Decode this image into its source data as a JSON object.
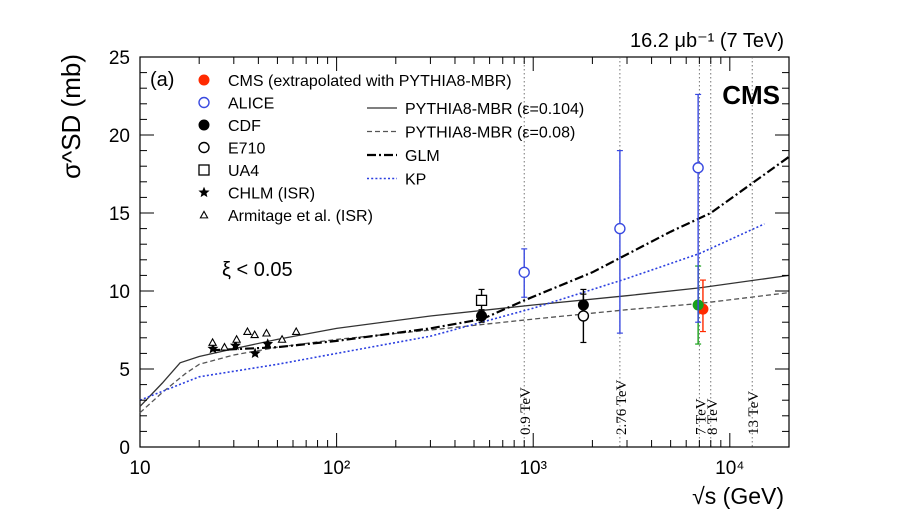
{
  "chart_data": {
    "type": "scatter",
    "panel_label": "(a)",
    "header_text": "16.2 μb⁻¹ (7 TeV)",
    "experiment_label": "CMS",
    "cut_label": "ξ < 0.05",
    "ylabel": "σ^SD (mb)",
    "xlabel": "√s (GeV)",
    "xscale": "log",
    "xlim": [
      10,
      20000
    ],
    "ylim": [
      0,
      25
    ],
    "x_ticks": [
      {
        "value": 10,
        "label": "10"
      },
      {
        "value": 100,
        "label": "10²"
      },
      {
        "value": 1000,
        "label": "10³"
      },
      {
        "value": 10000,
        "label": "10⁴"
      }
    ],
    "y_ticks": [
      {
        "value": 0,
        "label": "0"
      },
      {
        "value": 5,
        "label": "5"
      },
      {
        "value": 10,
        "label": "10"
      },
      {
        "value": 15,
        "label": "15"
      },
      {
        "value": 20,
        "label": "20"
      },
      {
        "value": 25,
        "label": "25"
      }
    ],
    "energy_markers": [
      {
        "x": 900,
        "label": "0.9 TeV"
      },
      {
        "x": 2760,
        "label": "2.76 TeV"
      },
      {
        "x": 7000,
        "label": "7 TeV"
      },
      {
        "x": 8000,
        "label": "8 TeV"
      },
      {
        "x": 13000,
        "label": "13 TeV"
      }
    ],
    "series": [
      {
        "name": "CMS (extrapolated with PYTHIA8-MBR)",
        "marker": "filled-circle",
        "color": "#ff2a00",
        "points": [
          {
            "x": 7300,
            "y": 8.84,
            "ylo": 7.4,
            "yhi": 10.7
          }
        ]
      },
      {
        "name": "CMS (green)",
        "marker": "filled-circle",
        "color": "#18a018",
        "legend": false,
        "points": [
          {
            "x": 6900,
            "y": 9.1,
            "ylo": 6.6,
            "yhi": 11.6
          }
        ]
      },
      {
        "name": "ALICE",
        "marker": "open-circle",
        "color": "#3a4ae0",
        "points": [
          {
            "x": 900,
            "y": 11.2,
            "ylo": 9.6,
            "yhi": 12.7
          },
          {
            "x": 2760,
            "y": 14.0,
            "ylo": 7.3,
            "yhi": 19.0
          },
          {
            "x": 6900,
            "y": 17.9,
            "ylo": 8.0,
            "yhi": 22.6
          }
        ]
      },
      {
        "name": "CDF",
        "marker": "filled-circle",
        "color": "#000000",
        "points": [
          {
            "x": 546,
            "y": 8.4,
            "ylo": 8.0,
            "yhi": 8.8
          },
          {
            "x": 1800,
            "y": 9.1,
            "ylo": 8.5,
            "yhi": 9.8
          }
        ]
      },
      {
        "name": "E710",
        "marker": "open-circle",
        "color": "#000000",
        "points": [
          {
            "x": 1800,
            "y": 8.4,
            "ylo": 6.7,
            "yhi": 10.1
          }
        ]
      },
      {
        "name": "UA4",
        "marker": "open-square",
        "color": "#000000",
        "points": [
          {
            "x": 546,
            "y": 9.4,
            "ylo": 8.7,
            "yhi": 10.1
          }
        ]
      },
      {
        "name": "CHLM (ISR)",
        "marker": "star",
        "color": "#000000",
        "points": [
          {
            "x": 23.5,
            "y": 6.3
          },
          {
            "x": 30.6,
            "y": 6.5
          },
          {
            "x": 38.5,
            "y": 6.0
          },
          {
            "x": 44.6,
            "y": 6.6
          }
        ]
      },
      {
        "name": "Armitage et al. (ISR)",
        "marker": "open-triangle",
        "color": "#000000",
        "points": [
          {
            "x": 23.4,
            "y": 6.7
          },
          {
            "x": 26.9,
            "y": 6.4
          },
          {
            "x": 31.0,
            "y": 6.9
          },
          {
            "x": 35.2,
            "y": 7.4
          },
          {
            "x": 38.3,
            "y": 7.2
          },
          {
            "x": 44.0,
            "y": 7.3
          },
          {
            "x": 52.8,
            "y": 6.9
          },
          {
            "x": 62.3,
            "y": 7.4
          }
        ]
      }
    ],
    "curves": [
      {
        "name": "PYTHIA8-MBR (ε=0.104)",
        "style": "solid",
        "color": "#333333",
        "points": [
          [
            10,
            2.6
          ],
          [
            13,
            4.1
          ],
          [
            16,
            5.4
          ],
          [
            20,
            5.8
          ],
          [
            30,
            6.3
          ],
          [
            50,
            6.9
          ],
          [
            100,
            7.6
          ],
          [
            300,
            8.4
          ],
          [
            1000,
            9.1
          ],
          [
            3000,
            9.7
          ],
          [
            7000,
            10.2
          ],
          [
            20000,
            11.0
          ]
        ]
      },
      {
        "name": "PYTHIA8-MBR (ε=0.08)",
        "style": "dashed",
        "color": "#555555",
        "points": [
          [
            10,
            2.2
          ],
          [
            13,
            3.5
          ],
          [
            17,
            4.7
          ],
          [
            20,
            5.3
          ],
          [
            30,
            5.9
          ],
          [
            50,
            6.4
          ],
          [
            100,
            6.9
          ],
          [
            300,
            7.5
          ],
          [
            1000,
            8.2
          ],
          [
            3000,
            8.8
          ],
          [
            7000,
            9.2
          ],
          [
            20000,
            9.9
          ]
        ]
      },
      {
        "name": "GLM",
        "style": "dashdot",
        "color": "#000000",
        "points": [
          [
            23,
            6.2
          ],
          [
            50,
            6.4
          ],
          [
            100,
            6.8
          ],
          [
            300,
            7.6
          ],
          [
            550,
            8.2
          ],
          [
            900,
            9.4
          ],
          [
            2000,
            11.2
          ],
          [
            5000,
            13.8
          ],
          [
            8000,
            15.0
          ],
          [
            20000,
            18.6
          ]
        ]
      },
      {
        "name": "KP",
        "style": "dotted",
        "color": "#2b3fe0",
        "points": [
          [
            10,
            3.0
          ],
          [
            20,
            4.5
          ],
          [
            50,
            5.3
          ],
          [
            100,
            6.0
          ],
          [
            300,
            7.1
          ],
          [
            1000,
            8.9
          ],
          [
            3000,
            10.8
          ],
          [
            7000,
            12.4
          ],
          [
            15000,
            14.3
          ]
        ]
      }
    ],
    "legend_left": [
      {
        "name": "CMS (extrapolated with PYTHIA8-MBR)",
        "marker": "filled-circle",
        "color": "#ff2a00"
      },
      {
        "name": "ALICE",
        "marker": "open-circle",
        "color": "#3a4ae0"
      },
      {
        "name": "CDF",
        "marker": "filled-circle",
        "color": "#000000"
      },
      {
        "name": "E710",
        "marker": "open-circle",
        "color": "#000000"
      },
      {
        "name": "UA4",
        "marker": "open-square",
        "color": "#000000"
      },
      {
        "name": "CHLM (ISR)",
        "marker": "star",
        "color": "#000000"
      },
      {
        "name": "Armitage et al. (ISR)",
        "marker": "open-triangle",
        "color": "#000000"
      }
    ],
    "legend_right": [
      {
        "name": "PYTHIA8-MBR (ε=0.104)",
        "style": "solid",
        "color": "#333333"
      },
      {
        "name": "PYTHIA8-MBR (ε=0.08)",
        "style": "dashed",
        "color": "#555555"
      },
      {
        "name": "GLM",
        "style": "dashdot",
        "color": "#000000"
      },
      {
        "name": "KP",
        "style": "dotted",
        "color": "#2b3fe0"
      }
    ]
  }
}
